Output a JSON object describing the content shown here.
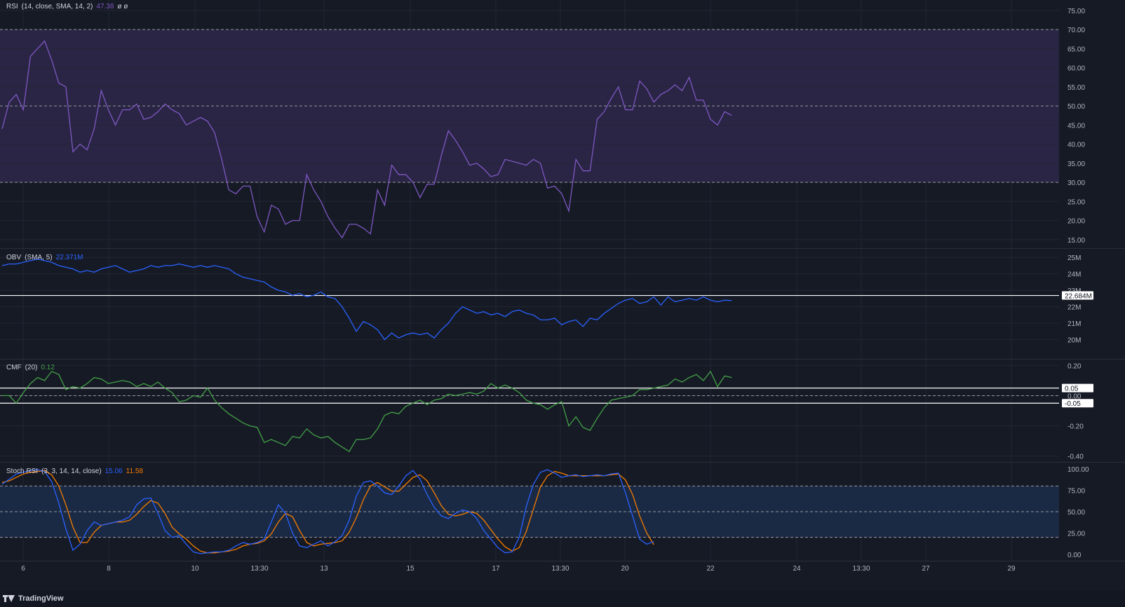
{
  "branding": {
    "logo_text": "TradingView"
  },
  "colors": {
    "background": "#161a25",
    "grid": "#232634",
    "text": "#b2b5be",
    "rsi": "#7e57c2",
    "rsi_band": "#2a2545",
    "obv": "#2962ff",
    "cmf": "#43a047",
    "stoch_k": "#2962ff",
    "stoch_d": "#f57c00",
    "stoch_band": "#1b2a44",
    "level_line": "#ffffff"
  },
  "x_axis": {
    "tick_labels": [
      "6",
      "8",
      "10",
      "13:30",
      "13",
      "15",
      "17",
      "13:30",
      "20",
      "22",
      "24",
      "13:30",
      "27",
      "29"
    ]
  },
  "chart_data": [
    {
      "type": "line",
      "legend": {
        "name": "RSI",
        "params": "(14, close, SMA, 14, 2)",
        "value": "47.38",
        "extra": "ø  ø"
      },
      "y_ticks": [
        "75.00",
        "70.00",
        "65.00",
        "60.00",
        "55.00",
        "50.00",
        "45.00",
        "40.00",
        "35.00",
        "30.00",
        "25.00",
        "20.00",
        "15.00"
      ],
      "ylim": [
        13.5,
        77
      ],
      "levels": [
        70,
        50,
        30
      ],
      "band": [
        30,
        70
      ],
      "series": [
        {
          "values": [
            44,
            51,
            53,
            49,
            63,
            65,
            67,
            62,
            56,
            55,
            38,
            40,
            38.5,
            44,
            54,
            49,
            45,
            49,
            49,
            50.5,
            46.5,
            47,
            48.5,
            50.5,
            49,
            48,
            45,
            46,
            47,
            46,
            43,
            36,
            28,
            27,
            29,
            29,
            21,
            17,
            24,
            23,
            19,
            20,
            20,
            32,
            28,
            25,
            21,
            18,
            15.5,
            19,
            19,
            18,
            16.5,
            28,
            24,
            34.5,
            32,
            32,
            30,
            26,
            29.5,
            29.5,
            37,
            43.5,
            41,
            38,
            34.5,
            35,
            33.5,
            31.5,
            32,
            36,
            35.5,
            35,
            34.5,
            36,
            35,
            28.5,
            29,
            27,
            22.5,
            36,
            33,
            33,
            46.5,
            48.5,
            52,
            55,
            49,
            49,
            56.5,
            54.5,
            51,
            53,
            54,
            55.5,
            54,
            57.5,
            51.5,
            51.5,
            46.5,
            45,
            48.5,
            47.5
          ]
        }
      ]
    },
    {
      "type": "line",
      "legend": {
        "name": "OBV",
        "params": "(SMA, 5)",
        "value": "22.371M"
      },
      "y_ticks": [
        "25M",
        "24M",
        "23M",
        "22M",
        "21M",
        "20M"
      ],
      "y_tick_values": [
        25,
        24,
        23,
        22,
        21,
        20
      ],
      "ylim": [
        19,
        25.35
      ],
      "level_value": 22.684,
      "level_label": "22.684M",
      "series": [
        {
          "values": [
            24.5,
            24.6,
            24.6,
            24.7,
            24.8,
            24.9,
            24.8,
            24.7,
            24.5,
            24.4,
            24.3,
            24.1,
            24.2,
            24.1,
            24.3,
            24.4,
            24.5,
            24.3,
            24.1,
            24.2,
            24.3,
            24.5,
            24.4,
            24.5,
            24.5,
            24.6,
            24.5,
            24.4,
            24.5,
            24.4,
            24.5,
            24.4,
            24.3,
            24.0,
            23.8,
            23.7,
            23.6,
            23.5,
            23.2,
            23.0,
            22.9,
            22.7,
            22.8,
            22.6,
            22.7,
            22.9,
            22.6,
            22.5,
            22.0,
            21.3,
            20.5,
            21.1,
            20.9,
            20.6,
            20.0,
            20.4,
            20.1,
            20.3,
            20.4,
            20.3,
            20.4,
            20.1,
            20.6,
            21.0,
            21.6,
            22.0,
            21.8,
            21.6,
            21.7,
            21.5,
            21.6,
            21.4,
            21.7,
            21.8,
            21.6,
            21.5,
            21.2,
            21.2,
            21.3,
            20.9,
            21.1,
            21.2,
            20.8,
            21.3,
            21.2,
            21.6,
            21.9,
            22.2,
            22.4,
            22.5,
            22.2,
            22.3,
            22.6,
            22.1,
            22.6,
            22.3,
            22.4,
            22.5,
            22.4,
            22.6,
            22.4,
            22.3,
            22.4,
            22.371
          ]
        }
      ]
    },
    {
      "type": "line",
      "legend": {
        "name": "CMF",
        "params": "(20)",
        "value": "0.12"
      },
      "y_ticks": [
        "0.20",
        "0.00",
        "-0.20",
        "-0.40"
      ],
      "y_tick_values": [
        0.2,
        0.0,
        -0.2,
        -0.4
      ],
      "ylim": [
        -0.42,
        0.22
      ],
      "zero_line": 0,
      "levels": [
        {
          "value": 0.05,
          "label": "0.05"
        },
        {
          "value": -0.05,
          "label": "-0.05"
        }
      ],
      "series": [
        {
          "values": [
            0.0,
            0.0,
            -0.05,
            0.02,
            0.08,
            0.12,
            0.1,
            0.16,
            0.14,
            0.04,
            0.06,
            0.05,
            0.08,
            0.12,
            0.11,
            0.08,
            0.09,
            0.1,
            0.09,
            0.06,
            0.08,
            0.06,
            0.09,
            0.05,
            0.02,
            -0.04,
            -0.03,
            0.0,
            -0.01,
            0.05,
            -0.03,
            -0.08,
            -0.12,
            -0.15,
            -0.18,
            -0.2,
            -0.21,
            -0.31,
            -0.29,
            -0.31,
            -0.33,
            -0.27,
            -0.28,
            -0.22,
            -0.26,
            -0.28,
            -0.27,
            -0.31,
            -0.34,
            -0.37,
            -0.29,
            -0.29,
            -0.28,
            -0.22,
            -0.13,
            -0.11,
            -0.12,
            -0.07,
            -0.05,
            -0.03,
            -0.06,
            -0.03,
            -0.02,
            0.01,
            0.0,
            0.01,
            0.02,
            0.01,
            0.03,
            0.08,
            0.05,
            0.07,
            0.05,
            0.02,
            -0.03,
            -0.05,
            -0.06,
            -0.09,
            -0.06,
            -0.04,
            -0.2,
            -0.14,
            -0.21,
            -0.23,
            -0.15,
            -0.08,
            -0.03,
            -0.02,
            -0.01,
            0.0,
            0.04,
            0.04,
            0.05,
            0.06,
            0.07,
            0.11,
            0.09,
            0.12,
            0.14,
            0.1,
            0.16,
            0.06,
            0.13,
            0.12
          ]
        }
      ]
    },
    {
      "type": "line",
      "legend": {
        "name": "Stoch RSI",
        "params": "(3, 3, 14, 14, close)",
        "value_k": "15.06",
        "value_d": "11.58"
      },
      "y_ticks": [
        "100.00",
        "75.00",
        "50.00",
        "25.00",
        "0.00"
      ],
      "y_tick_values": [
        100,
        75,
        50,
        25,
        0
      ],
      "ylim": [
        -4,
        104
      ],
      "levels": [
        80,
        50,
        20
      ],
      "band": [
        20,
        80
      ],
      "series": [
        {
          "name": "K",
          "values": [
            82,
            88,
            94,
            96,
            98,
            99,
            97,
            85,
            60,
            30,
            5,
            12,
            28,
            38,
            34,
            36,
            38,
            40,
            44,
            58,
            65,
            66,
            48,
            28,
            20,
            22,
            12,
            3,
            1,
            2,
            3,
            3,
            5,
            10,
            14,
            12,
            14,
            18,
            38,
            58,
            48,
            25,
            10,
            8,
            12,
            16,
            10,
            15,
            22,
            40,
            68,
            84,
            86,
            80,
            72,
            70,
            80,
            92,
            98,
            88,
            70,
            55,
            45,
            42,
            48,
            52,
            50,
            42,
            28,
            18,
            8,
            2,
            3,
            20,
            56,
            82,
            96,
            99,
            95,
            90,
            92,
            93,
            91,
            92,
            93,
            92,
            94,
            95,
            72,
            45,
            18,
            12,
            15.06
          ]
        },
        {
          "name": "D",
          "values": [
            84,
            86,
            90,
            94,
            96,
            97,
            98,
            93,
            80,
            58,
            32,
            14,
            14,
            26,
            34,
            36,
            38,
            38,
            40,
            47,
            56,
            63,
            60,
            48,
            32,
            24,
            18,
            10,
            4,
            2,
            2,
            3,
            4,
            6,
            10,
            12,
            13,
            16,
            24,
            38,
            48,
            44,
            28,
            14,
            10,
            12,
            13,
            14,
            16,
            26,
            43,
            64,
            80,
            84,
            79,
            74,
            74,
            82,
            90,
            93,
            86,
            72,
            57,
            47,
            45,
            47,
            50,
            48,
            40,
            29,
            18,
            9,
            4,
            8,
            27,
            53,
            79,
            92,
            97,
            95,
            92,
            92,
            92,
            92,
            92,
            92,
            93,
            94,
            87,
            70,
            45,
            25,
            11.58
          ]
        }
      ]
    }
  ]
}
